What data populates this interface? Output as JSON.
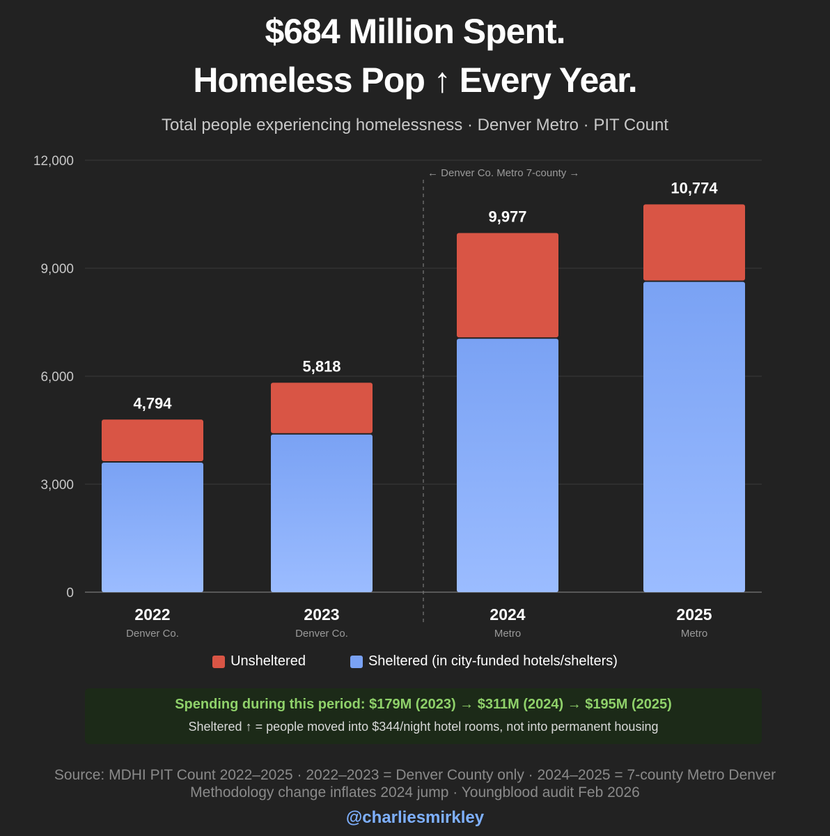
{
  "title_line1": "$684 Million Spent.",
  "title_line2": "Homeless Pop ↑ Every Year.",
  "subtitle": "Total people experiencing homelessness · Denver Metro · PIT Count",
  "colors": {
    "unsheltered": "#d95545",
    "sheltered_top": "#7aa2f4",
    "sheltered_bottom": "#9bbcff",
    "callout_bg": "#1c2a18",
    "callout_text": "#8fd16a",
    "handle": "#7eb0ff"
  },
  "chart_data": {
    "type": "bar",
    "stacked": true,
    "categories": [
      "2022",
      "2023",
      "2024",
      "2025"
    ],
    "category_sublabels": [
      "Denver Co.",
      "Denver Co.",
      "Metro",
      "Metro"
    ],
    "series": [
      {
        "name": "Sheltered (in city-funded hotels/shelters)",
        "values": [
          3600,
          4380,
          7040,
          8620
        ]
      },
      {
        "name": "Unsheltered",
        "values": [
          1194,
          1438,
          2937,
          2154
        ]
      }
    ],
    "totals": [
      4794,
      5818,
      9977,
      10774
    ],
    "total_labels": [
      "4,794",
      "5,818",
      "9,977",
      "10,774"
    ],
    "ylim": [
      0,
      12000
    ],
    "yticks": [
      0,
      3000,
      6000,
      9000,
      12000
    ],
    "ytick_labels": [
      "0",
      "3,000",
      "6,000",
      "9,000",
      "12,000"
    ],
    "grid": true,
    "annotation": "← Denver Co. Metro 7-county →",
    "divider_between": [
      "2023",
      "2024"
    ]
  },
  "legend": {
    "unsheltered": "Unsheltered",
    "sheltered": "Sheltered (in city-funded hotels/shelters)"
  },
  "callout": {
    "main": "Spending during this period: $179M (2023) → $311M (2024) → $195M (2025)",
    "sub": "Sheltered ↑ = people moved into $344/night hotel rooms, not into permanent housing"
  },
  "source_line1": "Source: MDHI PIT Count 2022–2025 · 2022–2023 = Denver County only · 2024–2025 = 7-county Metro Denver",
  "source_line2": "Methodology change inflates 2024 jump · Youngblood audit Feb 2026",
  "handle": "@charliesmirkley"
}
